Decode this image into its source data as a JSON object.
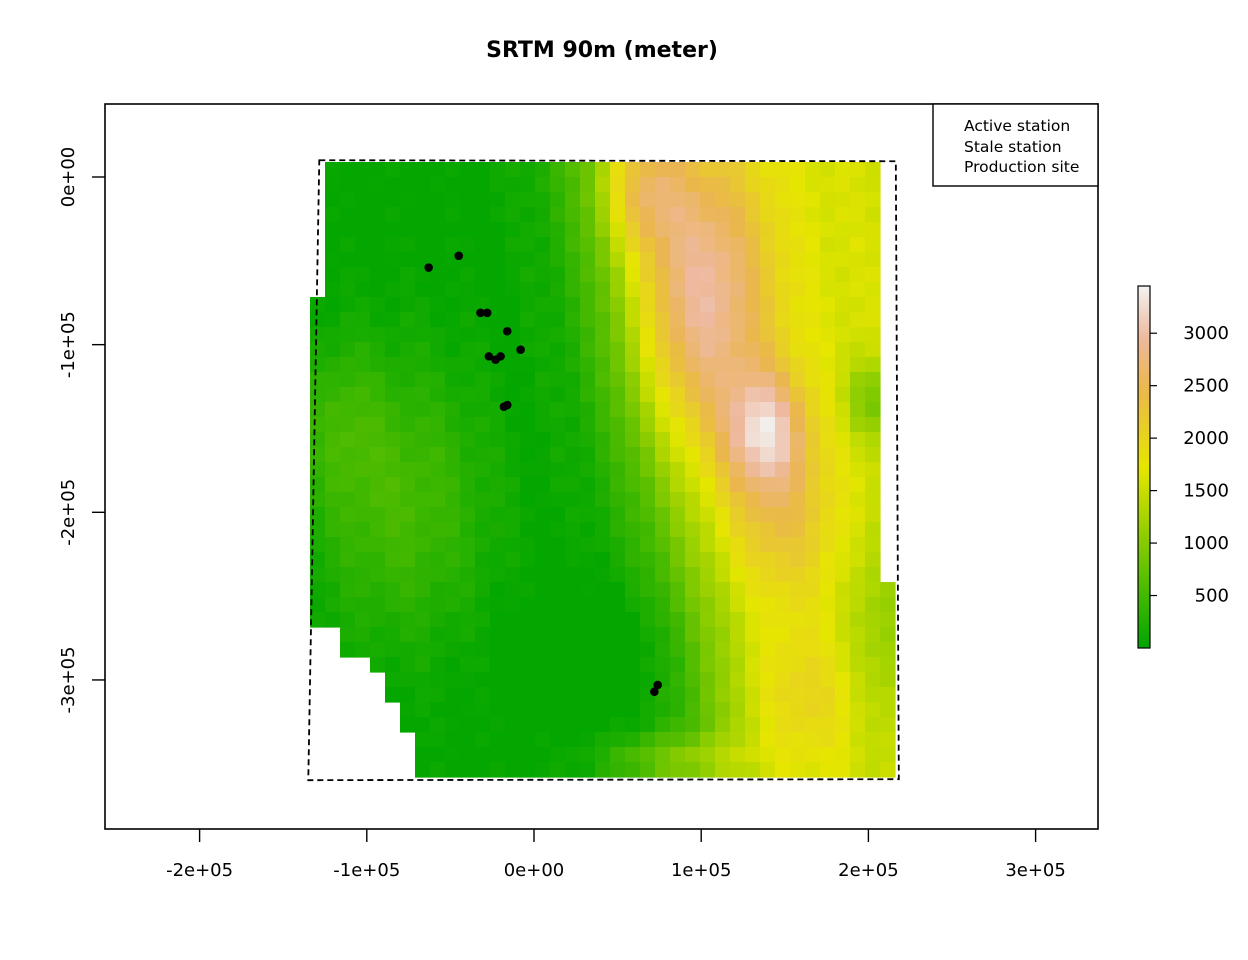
{
  "title": "SRTM 90m (meter)",
  "x_ticks": [
    "-2e+05",
    "-1e+05",
    "0e+00",
    "1e+05",
    "2e+05",
    "3e+05"
  ],
  "y_ticks": [
    "0e+00",
    "-1e+05",
    "-2e+05",
    "-3e+05"
  ],
  "legend": [
    "Active station",
    "Stale station",
    "Production site"
  ],
  "colorbar": {
    "ticks": [
      "500",
      "1000",
      "1500",
      "2000",
      "2500",
      "3000"
    ],
    "range": [
      0,
      3450
    ],
    "palette": [
      "#00A600",
      "#E6E600",
      "#EAB64E",
      "#EEB99F",
      "#F2F2F2"
    ]
  },
  "chart_data": {
    "type": "heatmap",
    "title": "SRTM 90m (meter)",
    "xlim": [
      -260000,
      335000
    ],
    "ylim": [
      -390000,
      43000
    ],
    "raster_extent": {
      "xmin": -135000,
      "xmax": 217000,
      "ymin": -358000,
      "ymax": 10000
    },
    "elevation_range_m": [
      0,
      3450
    ],
    "stations": [
      {
        "x": -63000,
        "y": -54000
      },
      {
        "x": -45000,
        "y": -47000
      },
      {
        "x": -32000,
        "y": -81000
      },
      {
        "x": -28000,
        "y": -81000
      },
      {
        "x": -16000,
        "y": -92000
      },
      {
        "x": -8000,
        "y": -103000
      },
      {
        "x": -27000,
        "y": -107000
      },
      {
        "x": -23000,
        "y": -109000
      },
      {
        "x": -20000,
        "y": -107000
      },
      {
        "x": -18000,
        "y": -137000
      },
      {
        "x": -16000,
        "y": -136000
      },
      {
        "x": 74000,
        "y": -303000
      },
      {
        "x": 72000,
        "y": -307000
      }
    ]
  }
}
